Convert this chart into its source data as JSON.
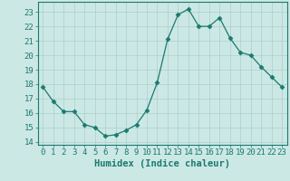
{
  "x": [
    0,
    1,
    2,
    3,
    4,
    5,
    6,
    7,
    8,
    9,
    10,
    11,
    12,
    13,
    14,
    15,
    16,
    17,
    18,
    19,
    20,
    21,
    22,
    23
  ],
  "y": [
    17.8,
    16.8,
    16.1,
    16.1,
    15.2,
    15.0,
    14.4,
    14.5,
    14.8,
    15.2,
    16.2,
    18.1,
    21.1,
    22.8,
    23.2,
    22.0,
    22.0,
    22.6,
    21.2,
    20.2,
    20.0,
    19.2,
    18.5,
    17.8
  ],
  "xlim": [
    -0.5,
    23.5
  ],
  "ylim": [
    13.8,
    23.7
  ],
  "yticks": [
    14,
    15,
    16,
    17,
    18,
    19,
    20,
    21,
    22,
    23
  ],
  "xticks": [
    0,
    1,
    2,
    3,
    4,
    5,
    6,
    7,
    8,
    9,
    10,
    11,
    12,
    13,
    14,
    15,
    16,
    17,
    18,
    19,
    20,
    21,
    22,
    23
  ],
  "xlabel": "Humidex (Indice chaleur)",
  "line_color": "#1a7a6e",
  "marker": "D",
  "marker_size": 2.5,
  "bg_color": "#cce8e5",
  "grid_color": "#aacfcc",
  "axis_color": "#1a7a6e",
  "tick_label_fontsize": 6.5,
  "xlabel_fontsize": 7.5
}
